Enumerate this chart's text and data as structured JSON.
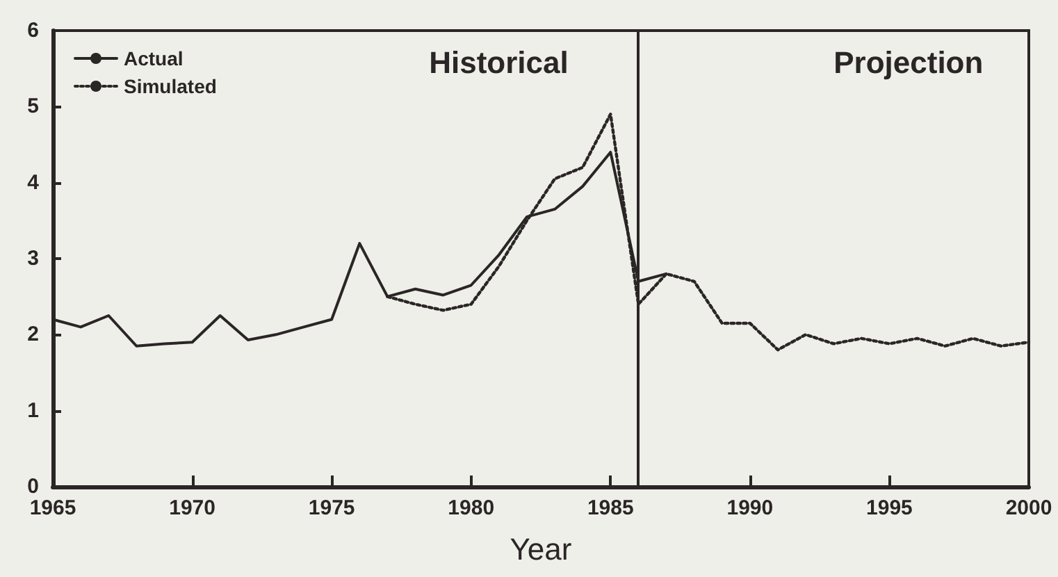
{
  "chart_data": {
    "type": "line",
    "xlabel": "Year",
    "x": [
      1965,
      1966,
      1967,
      1968,
      1969,
      1970,
      1971,
      1972,
      1973,
      1974,
      1975,
      1976,
      1977,
      1978,
      1979,
      1980,
      1981,
      1982,
      1983,
      1984,
      1985,
      1986,
      1987
    ],
    "series": [
      {
        "name": "Actual",
        "color": "#2b2626",
        "line_style": "solid",
        "values": [
          2.2,
          2.1,
          2.25,
          1.85,
          1.88,
          1.9,
          2.25,
          1.93,
          2.0,
          2.1,
          2.2,
          3.2,
          2.5,
          2.6,
          2.52,
          2.65,
          3.05,
          3.55,
          3.65,
          3.95,
          4.4,
          2.7,
          2.8
        ]
      },
      {
        "name": "Simulated",
        "color": "#2b2626",
        "line_style": "dotted",
        "x": [
          1977,
          1978,
          1979,
          1980,
          1981,
          1982,
          1983,
          1984,
          1985,
          1986,
          1987,
          1988,
          1989,
          1990,
          1991,
          1992,
          1993,
          1994,
          1995,
          1996,
          1997,
          1998,
          1999,
          2000
        ],
        "values": [
          2.5,
          2.4,
          2.32,
          2.4,
          2.9,
          3.5,
          4.05,
          4.2,
          4.9,
          2.4,
          2.8,
          2.7,
          2.15,
          2.15,
          1.8,
          2.0,
          1.88,
          1.95,
          1.88,
          1.95,
          1.85,
          1.95,
          1.85,
          1.9
        ]
      }
    ],
    "xlim": [
      1965,
      2000
    ],
    "xticks": [
      1965,
      1970,
      1975,
      1980,
      1985,
      1990,
      1995,
      2000
    ],
    "ylim": [
      0,
      6
    ],
    "yticks": [
      0,
      1,
      2,
      3,
      4,
      5,
      6
    ],
    "ref_lines": [
      {
        "axis": "x",
        "value": 1986,
        "color": "#2b2626",
        "line_style": "solid"
      }
    ],
    "annotations": [
      "Historical",
      "Projection"
    ],
    "legend": "top left",
    "grid": false,
    "marker": "none"
  }
}
